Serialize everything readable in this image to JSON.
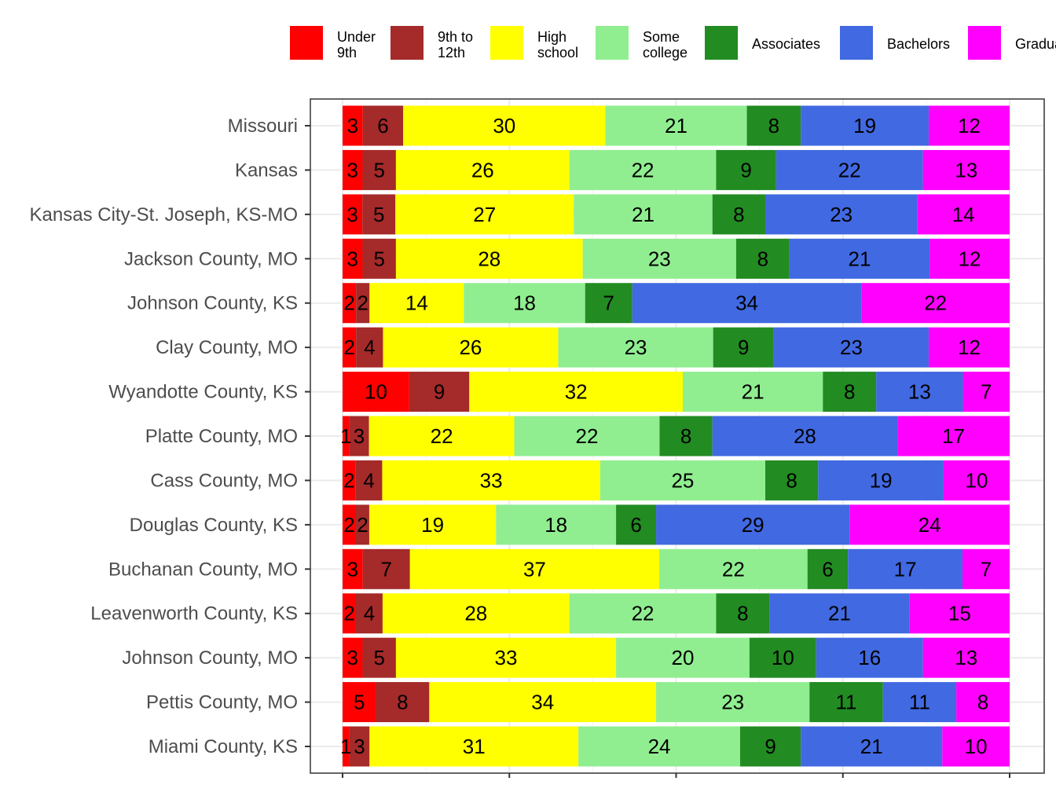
{
  "chart_data": {
    "type": "bar",
    "orientation": "horizontal",
    "stacked": true,
    "title": "",
    "xlabel": "",
    "ylabel": "",
    "xlim": [
      0,
      100
    ],
    "grid": true,
    "legend_position": "top",
    "categories": [
      "Missouri",
      "Kansas",
      "Kansas City-St. Joseph, KS-MO",
      "Jackson County, MO",
      "Johnson County, KS",
      "Clay County, MO",
      "Wyandotte County, KS",
      "Platte County, MO",
      "Cass County, MO",
      "Douglas County, KS",
      "Buchanan County, MO",
      "Leavenworth County, KS",
      "Johnson County, MO",
      "Pettis County, MO",
      "Miami County, KS"
    ],
    "series": [
      {
        "name": "Under 9th",
        "color": "#ff0000",
        "values": [
          3,
          3,
          3,
          3,
          2,
          2,
          10,
          1,
          2,
          2,
          3,
          2,
          3,
          5,
          1
        ]
      },
      {
        "name": "9th to 12th",
        "color": "#a52a2a",
        "values": [
          6,
          5,
          5,
          5,
          2,
          4,
          9,
          3,
          4,
          2,
          7,
          4,
          5,
          8,
          3
        ]
      },
      {
        "name": "High school",
        "color": "#ffff00",
        "values": [
          30,
          26,
          27,
          28,
          14,
          26,
          32,
          22,
          33,
          19,
          37,
          28,
          33,
          34,
          31
        ]
      },
      {
        "name": "Some college",
        "color": "#90ee90",
        "values": [
          21,
          22,
          21,
          23,
          18,
          23,
          21,
          22,
          25,
          18,
          22,
          22,
          20,
          23,
          24
        ]
      },
      {
        "name": "Associates",
        "color": "#228b22",
        "values": [
          8,
          9,
          8,
          8,
          7,
          9,
          8,
          8,
          8,
          6,
          6,
          8,
          10,
          11,
          9
        ]
      },
      {
        "name": "Bachelors",
        "color": "#4169e1",
        "values": [
          19,
          22,
          23,
          21,
          34,
          23,
          13,
          28,
          19,
          29,
          17,
          21,
          16,
          11,
          21
        ]
      },
      {
        "name": "Graduate",
        "color": "#ff00ff",
        "values": [
          12,
          13,
          14,
          12,
          22,
          12,
          7,
          17,
          10,
          24,
          7,
          15,
          13,
          8,
          10
        ]
      }
    ],
    "legend_labels": [
      [
        "Under",
        "9th"
      ],
      [
        "9th to",
        "12th"
      ],
      [
        "High",
        "school"
      ],
      [
        "Some",
        "college"
      ],
      [
        "Associates"
      ],
      [
        "Bachelors"
      ],
      [
        "Graduate"
      ]
    ]
  }
}
